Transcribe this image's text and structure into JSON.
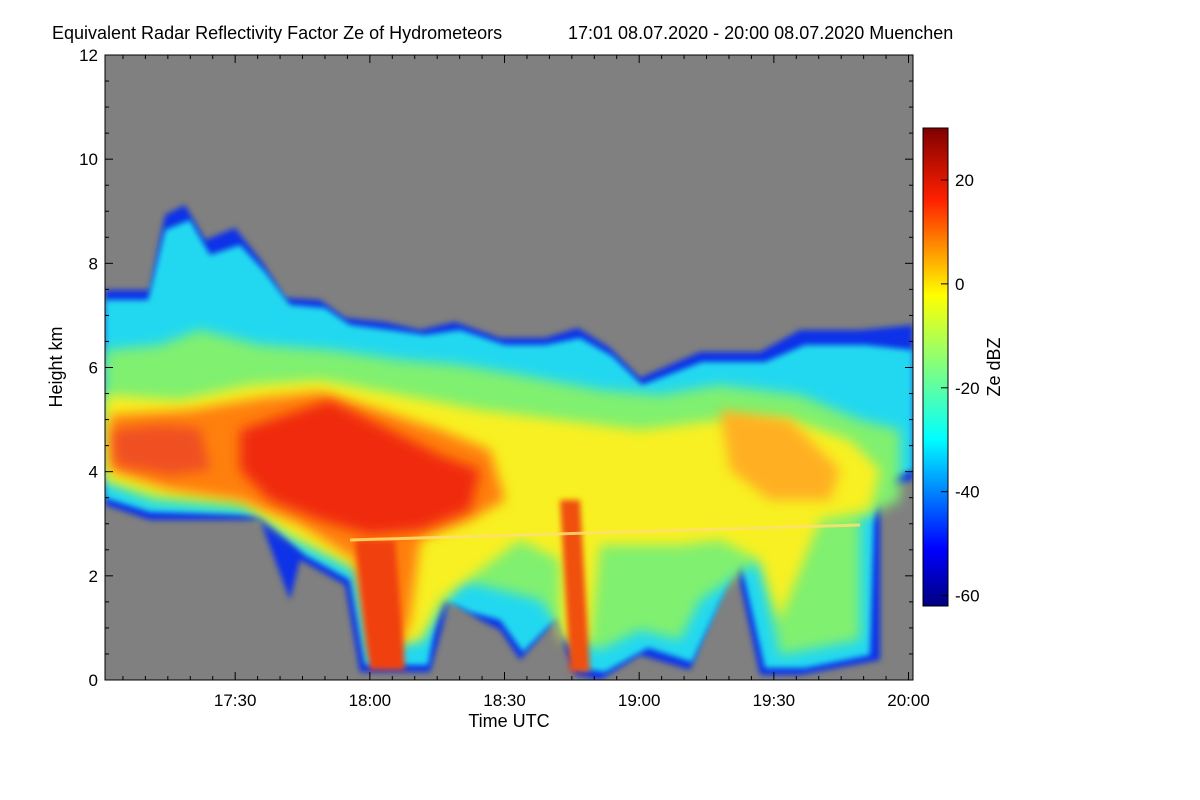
{
  "chart_data": {
    "type": "heatmap",
    "title": "Equivalent Radar Reflectivity Factor Ze of Hydrometeors",
    "subtitle": "17:01 08.07.2020 - 20:00 08.07.2020 Muenchen",
    "xlabel": "Time UTC",
    "ylabel": "Height km",
    "x_range_utc": [
      "17:01",
      "20:01"
    ],
    "x_ticks": [
      {
        "label": "17:30",
        "minutes_since_1700": 30
      },
      {
        "label": "18:00",
        "minutes_since_1700": 60
      },
      {
        "label": "18:30",
        "minutes_since_1700": 90
      },
      {
        "label": "19:00",
        "minutes_since_1700": 120
      },
      {
        "label": "19:30",
        "minutes_since_1700": 150
      },
      {
        "label": "20:00",
        "minutes_since_1700": 180
      }
    ],
    "ylim": [
      0,
      12
    ],
    "y_ticks": [
      "0",
      "2",
      "4",
      "6",
      "8",
      "10",
      "12"
    ],
    "y_tick_values": [
      0,
      2,
      4,
      6,
      8,
      10,
      12
    ],
    "colorbar": {
      "label": "Ze dBZ",
      "range": [
        -62,
        30
      ],
      "ticks": [
        "20",
        "0",
        "-20",
        "-40",
        "-60"
      ],
      "tick_values": [
        20,
        0,
        -20,
        -40,
        -60
      ],
      "colormap": "jet",
      "no_data_color": "#808080"
    },
    "features": {
      "cloud_top_km": {
        "17:01": 7.4,
        "17:30": 8.5,
        "18:00": 7.0,
        "18:30": 6.7,
        "19:00": 5.8,
        "19:30": 6.3,
        "20:00": 6.8
      },
      "melting_layer_km": 2.8,
      "max_reflectivity_dBZ": 22,
      "max_reflectivity_region": "17:45-18:20 between 3 and 5 km"
    }
  }
}
